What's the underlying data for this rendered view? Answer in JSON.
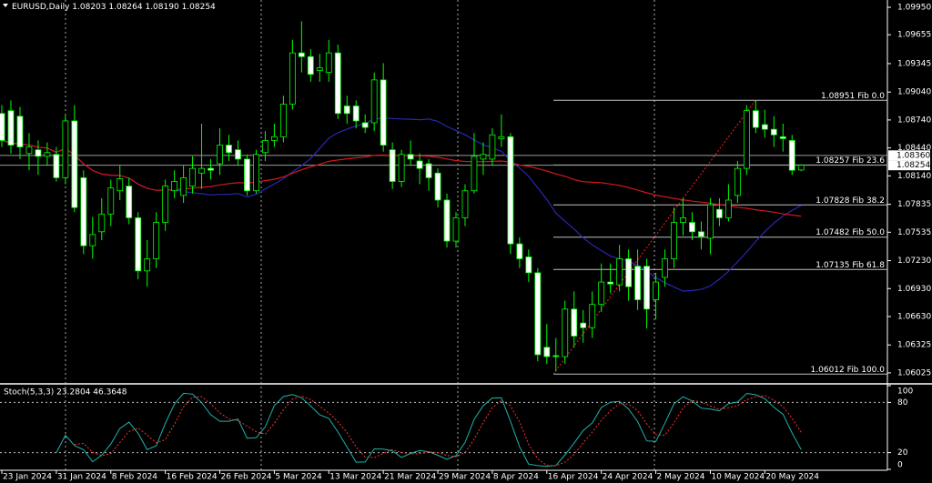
{
  "chart_data": {
    "type": "candlestick",
    "header": {
      "symbol": "EURUSD,Daily",
      "ohlc": [
        "1.08203",
        "1.08264",
        "1.08190",
        "1.08254"
      ]
    },
    "categories": [
      "23 Jan 2024",
      null,
      null,
      null,
      null,
      null,
      "31 Jan 2024",
      null,
      null,
      null,
      null,
      null,
      "8 Feb 2024",
      null,
      null,
      null,
      null,
      null,
      "16 Feb 2024",
      null,
      null,
      null,
      null,
      null,
      "26 Feb 2024",
      null,
      null,
      null,
      null,
      null,
      "5 Mar 2024",
      null,
      null,
      null,
      null,
      null,
      "13 Mar 2024",
      null,
      null,
      null,
      null,
      null,
      "21 Mar 2024",
      null,
      null,
      null,
      null,
      null,
      "29 Mar 2024",
      null,
      null,
      null,
      null,
      null,
      "8 Apr 2024",
      null,
      null,
      null,
      null,
      null,
      "16 Apr 2024",
      null,
      null,
      null,
      null,
      null,
      "24 Apr 2024",
      null,
      null,
      null,
      null,
      null,
      "2 May 2024",
      null,
      null,
      null,
      null,
      null,
      "10 May 2024",
      null,
      null,
      null,
      null,
      null,
      "20 May 2024",
      null,
      null,
      null,
      null
    ],
    "open": [
      1.0881,
      1.0884,
      1.0878,
      1.0838,
      1.0842,
      1.0835,
      1.0837,
      1.0812,
      1.0873,
      1.0812,
      1.0739,
      1.0754,
      1.0773,
      1.0798,
      1.0803,
      1.0769,
      1.0712,
      1.0725,
      1.0764,
      1.0798,
      1.0793,
      1.0803,
      1.0817,
      1.0822,
      1.0827,
      1.0847,
      1.0842,
      1.0832,
      1.0798,
      1.0839,
      1.0852,
      1.0856,
      1.0891,
      1.0946,
      1.0942,
      1.0927,
      1.0925,
      1.0946,
      1.0889,
      1.0889,
      1.0871,
      1.0871,
      1.0917,
      1.0842,
      1.0808,
      1.0837,
      1.083,
      1.0827,
      1.0817,
      1.0788,
      1.0744,
      1.0769,
      1.0798,
      1.0832,
      1.0832,
      1.0854,
      1.0856,
      1.0741,
      1.0727,
      1.071,
      1.063,
      1.0621,
      1.062,
      1.0671,
      1.0656,
      1.0651,
      1.0676,
      1.07,
      1.0697,
      1.0725,
      1.0717,
      1.0717,
      1.0681,
      1.0705,
      1.0725,
      1.0764,
      1.0764,
      1.0754,
      1.0747,
      1.0778,
      1.0769,
      1.0793,
      1.0822,
      1.0884,
      1.0869,
      1.0864,
      1.0856,
      1.0852,
      1.08203
    ],
    "high": [
      1.089,
      1.0895,
      1.0888,
      1.086,
      1.0852,
      1.085,
      1.0845,
      1.088,
      1.089,
      1.082,
      1.077,
      1.079,
      1.081,
      1.0825,
      1.0812,
      1.0775,
      1.0745,
      1.0775,
      1.081,
      1.082,
      1.0825,
      1.0835,
      1.087,
      1.0832,
      1.0865,
      1.0858,
      1.0852,
      1.0837,
      1.0842,
      1.0862,
      1.087,
      1.09,
      1.096,
      1.098,
      1.095,
      1.0945,
      1.096,
      1.0955,
      1.09,
      1.0895,
      1.088,
      1.0925,
      1.0935,
      1.085,
      1.0842,
      1.0852,
      1.0838,
      1.0832,
      1.0822,
      1.0795,
      1.0775,
      1.0805,
      1.086,
      1.085,
      1.0865,
      1.088,
      1.086,
      1.0748,
      1.0735,
      1.0715,
      1.0655,
      1.064,
      1.068,
      1.069,
      1.067,
      1.069,
      1.072,
      1.072,
      1.074,
      1.0735,
      1.0735,
      1.0725,
      1.071,
      1.0735,
      1.078,
      1.079,
      1.0775,
      1.0765,
      1.079,
      1.079,
      1.0805,
      1.083,
      1.089,
      1.0895,
      1.0885,
      1.0878,
      1.087,
      1.0858,
      1.08264
    ],
    "low": [
      1.0845,
      1.0838,
      1.0832,
      1.082,
      1.0815,
      1.0825,
      1.0808,
      1.0805,
      1.0775,
      1.073,
      1.0725,
      1.0745,
      1.076,
      1.0788,
      1.0762,
      1.0703,
      1.0695,
      1.0715,
      1.0755,
      1.079,
      1.0785,
      1.0795,
      1.08,
      1.081,
      1.0815,
      1.083,
      1.0825,
      1.0793,
      1.0795,
      1.083,
      1.0845,
      1.085,
      1.0885,
      1.0925,
      1.0915,
      1.0915,
      1.0915,
      1.0875,
      1.087,
      1.0865,
      1.086,
      1.0862,
      1.084,
      1.08,
      1.0802,
      1.0825,
      1.0805,
      1.0798,
      1.078,
      1.0737,
      1.0737,
      1.076,
      1.0795,
      1.0815,
      1.0825,
      1.0845,
      1.073,
      1.0715,
      1.07,
      1.0615,
      1.0612,
      1.0604,
      1.0612,
      1.063,
      1.0635,
      1.064,
      1.0668,
      1.0688,
      1.069,
      1.068,
      1.067,
      1.065,
      1.066,
      1.0695,
      1.0715,
      1.075,
      1.0745,
      1.0735,
      1.073,
      1.076,
      1.0765,
      1.0785,
      1.0815,
      1.086,
      1.0855,
      1.0845,
      1.084,
      1.0815,
      1.0819
    ],
    "close": [
      1.0852,
      1.0847,
      1.0845,
      1.0845,
      1.0835,
      1.0839,
      1.0812,
      1.0873,
      1.078,
      1.0739,
      1.0751,
      1.0773,
      1.0801,
      1.0811,
      1.0769,
      1.0712,
      1.0725,
      1.0764,
      1.0803,
      1.0808,
      1.0812,
      1.0822,
      1.0822,
      1.082,
      1.0847,
      1.0839,
      1.0832,
      1.0798,
      1.0837,
      1.0852,
      1.0856,
      1.0891,
      1.0946,
      1.0942,
      1.0923,
      1.093,
      1.0946,
      1.0881,
      1.0881,
      1.0873,
      1.0866,
      1.0917,
      1.0847,
      1.0808,
      1.0837,
      1.0832,
      1.0822,
      1.0812,
      1.0788,
      1.0744,
      1.0769,
      1.0798,
      1.0835,
      1.0837,
      1.0858,
      1.0856,
      1.0741,
      1.0725,
      1.071,
      1.0622,
      1.062,
      1.062,
      1.0671,
      1.0642,
      1.0651,
      1.0676,
      1.07,
      1.0698,
      1.0725,
      1.0695,
      1.0681,
      1.0671,
      1.07,
      1.0725,
      1.0764,
      1.0769,
      1.0754,
      1.0749,
      1.0783,
      1.0769,
      1.0788,
      1.0822,
      1.0884,
      1.0866,
      1.0864,
      1.0858,
      1.0854,
      1.082,
      1.08254
    ],
    "up_color": "#000000",
    "down_color": "#ffffff",
    "wick_color": "#00ff00",
    "ylim": [
      1.05917,
      1.10028
    ],
    "yticks": [
      {
        "value": 1.0995,
        "label": "1.09950"
      },
      {
        "value": 1.09655,
        "label": "1.09655"
      },
      {
        "value": 1.09345,
        "label": "1.09345"
      },
      {
        "value": 1.0904,
        "label": "1.09040"
      },
      {
        "value": 1.0874,
        "label": "1.08740"
      },
      {
        "value": 1.0844,
        "label": "1.08440"
      },
      {
        "value": 1.0814,
        "label": "1.08140"
      },
      {
        "value": 1.07835,
        "label": "1.07835"
      },
      {
        "value": 1.07535,
        "label": "1.07535"
      },
      {
        "value": 1.0723,
        "label": "1.07230"
      },
      {
        "value": 1.0693,
        "label": "1.06930"
      },
      {
        "value": 1.0663,
        "label": "1.06630"
      },
      {
        "value": 1.06325,
        "label": "1.06325"
      },
      {
        "value": 1.06025,
        "label": "1.06025"
      }
    ],
    "price_lines": [
      {
        "value": 1.0836,
        "label": "1.08360"
      },
      {
        "value": 1.08254,
        "label": "1.08254"
      }
    ],
    "fibonacci": {
      "color": "#c0c0c0",
      "trend_color": "#ff2020",
      "levels": [
        {
          "value": 1.08951,
          "label": "1.08951 Fib 0.0"
        },
        {
          "value": 1.08257,
          "label": "1.08257 Fib 23.6"
        },
        {
          "value": 1.07828,
          "label": "1.07828 Fib 38.2"
        },
        {
          "value": 1.07482,
          "label": "1.07482 Fib 50.0"
        },
        {
          "value": 1.07135,
          "label": "1.07135 Fib 61.8"
        },
        {
          "value": 1.06012,
          "label": "1.06012 Fib 100.0"
        }
      ]
    },
    "moving_averages": [
      {
        "period": 20,
        "color": "#2828b4"
      },
      {
        "period": 50,
        "color": "#d01818"
      }
    ],
    "stochastic": {
      "title": "Stoch(5,3,3) 23.2804 46.3648",
      "k_period": 5,
      "slowing": 3,
      "d_period": 3,
      "ylim": [
        0,
        100
      ],
      "yticks": [
        100,
        80,
        20,
        0
      ],
      "levels": [
        80,
        20
      ],
      "main_color": "#20b2aa",
      "signal_color": "#ff3030"
    }
  }
}
